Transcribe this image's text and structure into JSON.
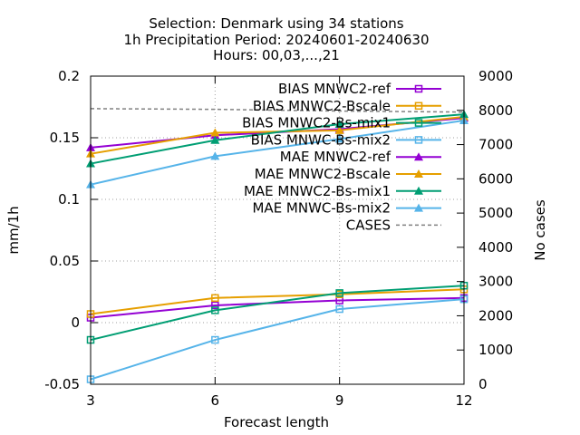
{
  "title_lines": [
    "Selection: Denmark using    34 stations",
    "1h Precipitation   Period: 20240601-20240630",
    "Hours: 00,03,...,21"
  ],
  "chart_data": {
    "type": "line",
    "title": "Selection: Denmark using    34 stations / 1h Precipitation   Period: 20240601-20240630 / Hours: 00,03,...,21",
    "xlabel": "Forecast length",
    "ylabel": "mm/1h",
    "y2label": "No cases",
    "x": [
      3,
      6,
      9,
      12
    ],
    "xlim": [
      3,
      12
    ],
    "ylim": [
      -0.05,
      0.2
    ],
    "y2lim": [
      0,
      9000
    ],
    "x_ticks": [
      "3",
      "6",
      "9",
      "12"
    ],
    "y_ticks": [
      "-0.05",
      "0",
      "0.05",
      "0.1",
      "0.15",
      "0.2"
    ],
    "y2_ticks": [
      "0",
      "1000",
      "2000",
      "3000",
      "4000",
      "5000",
      "6000",
      "7000",
      "8000",
      "9000"
    ],
    "y_tick_values": [
      -0.05,
      0,
      0.05,
      0.1,
      0.15,
      0.2
    ],
    "y2_tick_values": [
      0,
      1000,
      2000,
      3000,
      4000,
      5000,
      6000,
      7000,
      8000,
      9000
    ],
    "grid": true,
    "legend_position": "top-right",
    "series": [
      {
        "name": "BIAS MNWC2-ref",
        "axis": "y",
        "marker": "square",
        "color": "#9400d3",
        "values": [
          0.004,
          0.014,
          0.018,
          0.02
        ]
      },
      {
        "name": "BIAS MNWC2-Bscale",
        "axis": "y",
        "marker": "square",
        "color": "#e69f00",
        "values": [
          0.007,
          0.02,
          0.023,
          0.027
        ]
      },
      {
        "name": "BIAS MNWC2-Bs-mix1",
        "axis": "y",
        "marker": "square",
        "color": "#009e73",
        "values": [
          -0.014,
          0.01,
          0.024,
          0.03
        ]
      },
      {
        "name": "BIAS MNWC-Bs-mix2",
        "axis": "y",
        "marker": "square",
        "color": "#56b4e9",
        "values": [
          -0.046,
          -0.014,
          0.011,
          0.019
        ]
      },
      {
        "name": "MAE MNWC2-ref",
        "axis": "y",
        "marker": "triangle",
        "color": "#9400d3",
        "values": [
          0.142,
          0.152,
          0.157,
          0.166
        ]
      },
      {
        "name": "MAE MNWC2-Bscale",
        "axis": "y",
        "marker": "triangle",
        "color": "#e69f00",
        "values": [
          0.137,
          0.154,
          0.156,
          0.167
        ]
      },
      {
        "name": "MAE MNWC2-Bs-mix1",
        "axis": "y",
        "marker": "triangle",
        "color": "#009e73",
        "values": [
          0.129,
          0.148,
          0.161,
          0.169
        ]
      },
      {
        "name": "MAE MNWC-Bs-mix2",
        "axis": "y",
        "marker": "triangle",
        "color": "#56b4e9",
        "values": [
          0.112,
          0.135,
          0.149,
          0.164
        ]
      },
      {
        "name": "CASES",
        "axis": "y2",
        "marker": "none",
        "color": "#808080",
        "dashed": true,
        "values": [
          8050,
          8030,
          7980,
          7950
        ]
      }
    ]
  }
}
